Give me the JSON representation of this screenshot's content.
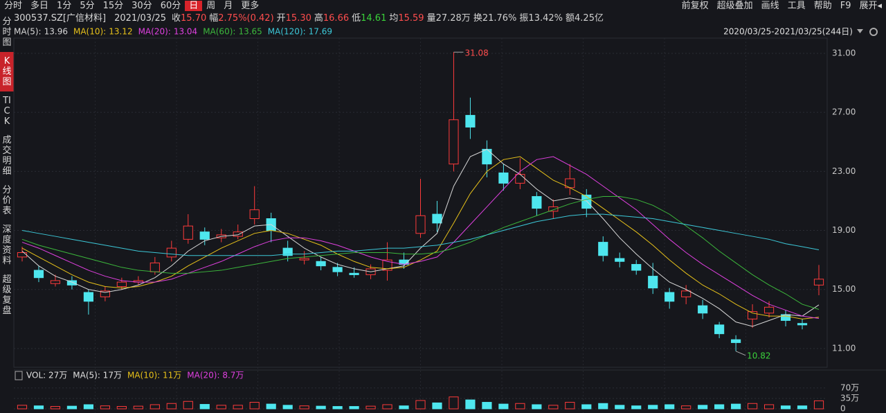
{
  "toolbar": {
    "left": [
      "分时",
      "多日",
      "1分",
      "5分",
      "15分",
      "30分",
      "60分",
      "日",
      "周",
      "月",
      "更多"
    ],
    "active": "日",
    "right": [
      "前复权",
      "超级叠加",
      "画线",
      "工具",
      "帮助",
      "F9",
      "展开◂"
    ]
  },
  "sidebar": [
    "分时图",
    "K线图",
    "TICK",
    "成交明细",
    "分价表",
    "深度资料",
    "超级复盘"
  ],
  "sidebar_active": "K线图",
  "info": {
    "symbol": "300537.SZ[广信材料]",
    "date": "2021/03/25",
    "quote": [
      {
        "label": "收",
        "value": "15.70",
        "color": "#ff4d4d"
      },
      {
        "label": "幅",
        "value": "2.75%(0.42)",
        "color": "#ff4d4d"
      },
      {
        "label": "开",
        "value": "15.30",
        "color": "#ff4d4d"
      },
      {
        "label": "高",
        "value": "16.66",
        "color": "#ff4d4d"
      },
      {
        "label": "低",
        "value": "14.61",
        "color": "#3ad23a"
      },
      {
        "label": "均",
        "value": "15.59",
        "color": "#ff4d4d"
      },
      {
        "label": "量",
        "value": "27.28万",
        "color": "#d0d0d0"
      },
      {
        "label": "换",
        "value": "21.76%",
        "color": "#d0d0d0"
      },
      {
        "label": "振",
        "value": "13.42%",
        "color": "#d0d0d0"
      },
      {
        "label": "额",
        "value": "4.25亿",
        "color": "#d0d0d0"
      }
    ]
  },
  "range": "2020/03/25-2021/03/25(244日)",
  "chart_data": {
    "type": "candlestick",
    "up_color": "#ff3b3b",
    "down_color": "#4ee6ee",
    "grid": true,
    "ylim": [
      9.73,
      32.03
    ],
    "yticks": [
      {
        "value": 11,
        "label": "11.00"
      },
      {
        "value": 15,
        "label": "15.00"
      },
      {
        "value": 19,
        "label": "19.00"
      },
      {
        "value": 23,
        "label": "23.00"
      },
      {
        "value": 27,
        "label": "27.00"
      },
      {
        "value": 31,
        "label": "31.00"
      }
    ],
    "open": [
      17.2,
      16.3,
      15.4,
      15.6,
      14.8,
      14.5,
      15.2,
      15.5,
      16.2,
      17.2,
      18.4,
      18.9,
      18.5,
      18.6,
      19.8,
      19.8,
      17.8,
      17.0,
      16.9,
      16.5,
      16.1,
      16.0,
      16.3,
      17.0,
      18.8,
      20.1,
      23.5,
      26.8,
      24.5,
      22.9,
      22.2,
      21.3,
      20.3,
      21.9,
      21.4,
      18.2,
      17.1,
      16.7,
      15.9,
      14.8,
      14.5,
      13.9,
      12.6,
      11.6,
      13.0,
      13.4,
      13.3,
      12.7,
      15.3
    ],
    "high": [
      17.9,
      16.6,
      16.0,
      15.9,
      15.0,
      15.2,
      15.8,
      15.9,
      17.2,
      18.3,
      20.1,
      19.2,
      19.1,
      19.4,
      22.0,
      20.2,
      18.3,
      17.6,
      17.2,
      16.8,
      16.5,
      16.7,
      18.2,
      17.5,
      22.5,
      21.0,
      31.08,
      28.0,
      25.1,
      23.5,
      23.9,
      21.6,
      21.1,
      23.5,
      21.8,
      18.6,
      17.5,
      17.0,
      16.8,
      15.1,
      15.3,
      14.3,
      12.8,
      11.9,
      14.0,
      14.2,
      13.6,
      13.0,
      16.66
    ],
    "low": [
      16.9,
      15.5,
      15.2,
      15.0,
      13.3,
      14.2,
      15.0,
      15.3,
      16.0,
      16.9,
      18.1,
      18.0,
      18.2,
      18.4,
      19.4,
      18.2,
      16.9,
      16.7,
      16.3,
      15.9,
      15.8,
      15.7,
      15.6,
      16.4,
      18.5,
      18.9,
      23.0,
      25.2,
      22.6,
      21.7,
      21.8,
      20.0,
      19.8,
      21.4,
      19.9,
      16.9,
      16.5,
      16.0,
      14.7,
      13.7,
      14.0,
      13.0,
      11.7,
      10.82,
      12.4,
      13.1,
      12.5,
      12.3,
      14.61
    ],
    "close": [
      17.5,
      15.8,
      15.6,
      15.3,
      14.2,
      14.9,
      15.5,
      15.6,
      16.8,
      17.8,
      19.3,
      18.4,
      18.7,
      18.9,
      20.4,
      19.0,
      17.3,
      17.1,
      16.6,
      16.2,
      16.0,
      16.4,
      17.0,
      16.7,
      20.0,
      19.5,
      26.5,
      26.0,
      23.5,
      22.2,
      22.8,
      20.5,
      20.6,
      22.5,
      20.5,
      17.3,
      16.9,
      16.3,
      15.1,
      14.2,
      14.9,
      13.4,
      12.0,
      11.4,
      13.5,
      13.8,
      12.9,
      12.6,
      15.7
    ],
    "series": [
      {
        "name": "MA(5):",
        "last": 13.96,
        "color": "#d8d8d8",
        "values": [
          17.6,
          16.6,
          15.9,
          15.5,
          15.0,
          14.8,
          15.0,
          15.3,
          15.8,
          16.6,
          17.6,
          18.3,
          18.6,
          18.7,
          19.3,
          19.4,
          18.6,
          17.8,
          17.2,
          16.7,
          16.4,
          16.2,
          16.4,
          16.6,
          17.8,
          18.8,
          22.0,
          24.0,
          24.5,
          23.5,
          22.8,
          21.8,
          21.0,
          21.2,
          21.0,
          19.8,
          18.5,
          17.4,
          16.4,
          15.5,
          15.0,
          14.4,
          13.7,
          12.8,
          12.5,
          12.9,
          13.3,
          13.2,
          13.96
        ]
      },
      {
        "name": "MA(10):",
        "last": 13.12,
        "color": "#e8c21a",
        "values": [
          17.8,
          17.2,
          16.6,
          16.0,
          15.5,
          15.2,
          15.1,
          15.2,
          15.5,
          15.9,
          16.6,
          17.2,
          17.8,
          18.3,
          18.8,
          19.0,
          18.8,
          18.4,
          18.0,
          17.4,
          16.9,
          16.5,
          16.4,
          16.5,
          17.0,
          17.6,
          19.5,
          21.5,
          23.0,
          23.8,
          24.0,
          23.2,
          22.4,
          21.9,
          21.3,
          20.5,
          19.7,
          18.9,
          18.0,
          17.0,
          16.1,
          15.3,
          14.7,
          14.0,
          13.4,
          13.2,
          13.2,
          13.0,
          13.12
        ]
      },
      {
        "name": "MA(20):",
        "last": 13.04,
        "color": "#e040e0",
        "values": [
          18.2,
          17.8,
          17.3,
          16.8,
          16.3,
          15.9,
          15.6,
          15.5,
          15.5,
          15.7,
          16.1,
          16.5,
          16.9,
          17.4,
          17.9,
          18.3,
          18.5,
          18.5,
          18.3,
          18.0,
          17.6,
          17.2,
          16.9,
          16.7,
          16.9,
          17.2,
          18.2,
          19.4,
          20.6,
          21.8,
          23.0,
          23.8,
          24.0,
          23.4,
          22.8,
          22.0,
          21.2,
          20.4,
          19.4,
          18.4,
          17.5,
          16.7,
          16.0,
          15.3,
          14.6,
          14.0,
          13.6,
          13.2,
          13.04
        ]
      },
      {
        "name": "MA(60):",
        "last": 13.65,
        "color": "#3cb83c",
        "values": [
          18.4,
          18.0,
          17.7,
          17.4,
          17.1,
          16.8,
          16.5,
          16.3,
          16.2,
          16.1,
          16.1,
          16.2,
          16.3,
          16.5,
          16.7,
          16.9,
          17.1,
          17.2,
          17.3,
          17.4,
          17.5,
          17.5,
          17.5,
          17.4,
          17.4,
          17.5,
          17.8,
          18.2,
          18.7,
          19.2,
          19.6,
          20.0,
          20.4,
          20.8,
          21.1,
          21.3,
          21.3,
          21.1,
          20.7,
          20.1,
          19.3,
          18.5,
          17.6,
          16.8,
          16.0,
          15.3,
          14.7,
          14.0,
          13.65
        ]
      },
      {
        "name": "MA(120):",
        "last": 17.69,
        "color": "#3cc8d8",
        "values": [
          19.0,
          18.8,
          18.6,
          18.4,
          18.2,
          18.0,
          17.8,
          17.6,
          17.5,
          17.4,
          17.3,
          17.3,
          17.3,
          17.3,
          17.3,
          17.3,
          17.4,
          17.4,
          17.5,
          17.6,
          17.6,
          17.7,
          17.8,
          17.8,
          17.9,
          18.0,
          18.2,
          18.4,
          18.7,
          19.0,
          19.3,
          19.6,
          19.8,
          20.0,
          20.1,
          20.1,
          20.0,
          19.9,
          19.8,
          19.6,
          19.4,
          19.2,
          19.0,
          18.8,
          18.6,
          18.4,
          18.1,
          17.9,
          17.69
        ]
      }
    ],
    "volume": {
      "header": [
        {
          "text": "VOL: 27万",
          "color": "#e0e0e0"
        },
        {
          "text": "MA(5): 17万",
          "color": "#e0e0e0"
        },
        {
          "text": "MA(10): 11万",
          "color": "#e8c21a"
        },
        {
          "text": "MA(20): 8.7万",
          "color": "#e040e0"
        }
      ],
      "ylim": [
        0,
        86
      ],
      "yticks": [
        0,
        {
          "value": 35,
          "label": "35万"
        },
        {
          "value": 70,
          "label": "70万"
        }
      ],
      "values": [
        12,
        10,
        8,
        9,
        14,
        10,
        8,
        9,
        14,
        18,
        25,
        15,
        12,
        12,
        22,
        16,
        12,
        10,
        9,
        8,
        8,
        9,
        14,
        10,
        28,
        20,
        40,
        30,
        22,
        16,
        18,
        14,
        12,
        22,
        14,
        18,
        12,
        10,
        12,
        14,
        10,
        12,
        14,
        16,
        18,
        14,
        10,
        10,
        27
      ]
    }
  }
}
